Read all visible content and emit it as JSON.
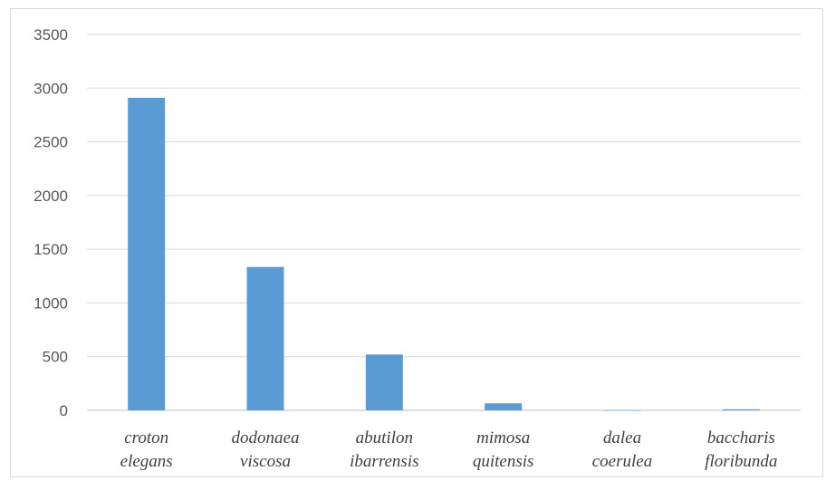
{
  "chart_data": {
    "type": "bar",
    "categories": [
      [
        "croton",
        "elegans"
      ],
      [
        "dodonaea",
        "viscosa"
      ],
      [
        "abutilon",
        "ibarrensis"
      ],
      [
        "mimosa",
        "quitensis"
      ],
      [
        "dalea",
        "coerulea"
      ],
      [
        "baccharis",
        "floribunda"
      ]
    ],
    "values": [
      2910,
      1335,
      520,
      65,
      2,
      10
    ],
    "title": "",
    "xlabel": "",
    "ylabel": "",
    "ylim": [
      0,
      3500
    ],
    "yticks": [
      0,
      500,
      1000,
      1500,
      2000,
      2500,
      3000,
      3500
    ],
    "grid": true,
    "legend": "none",
    "colors": {
      "bar": "#5b9bd5",
      "grid": "#d9d9d9",
      "axis": "#bfbfbf"
    }
  }
}
